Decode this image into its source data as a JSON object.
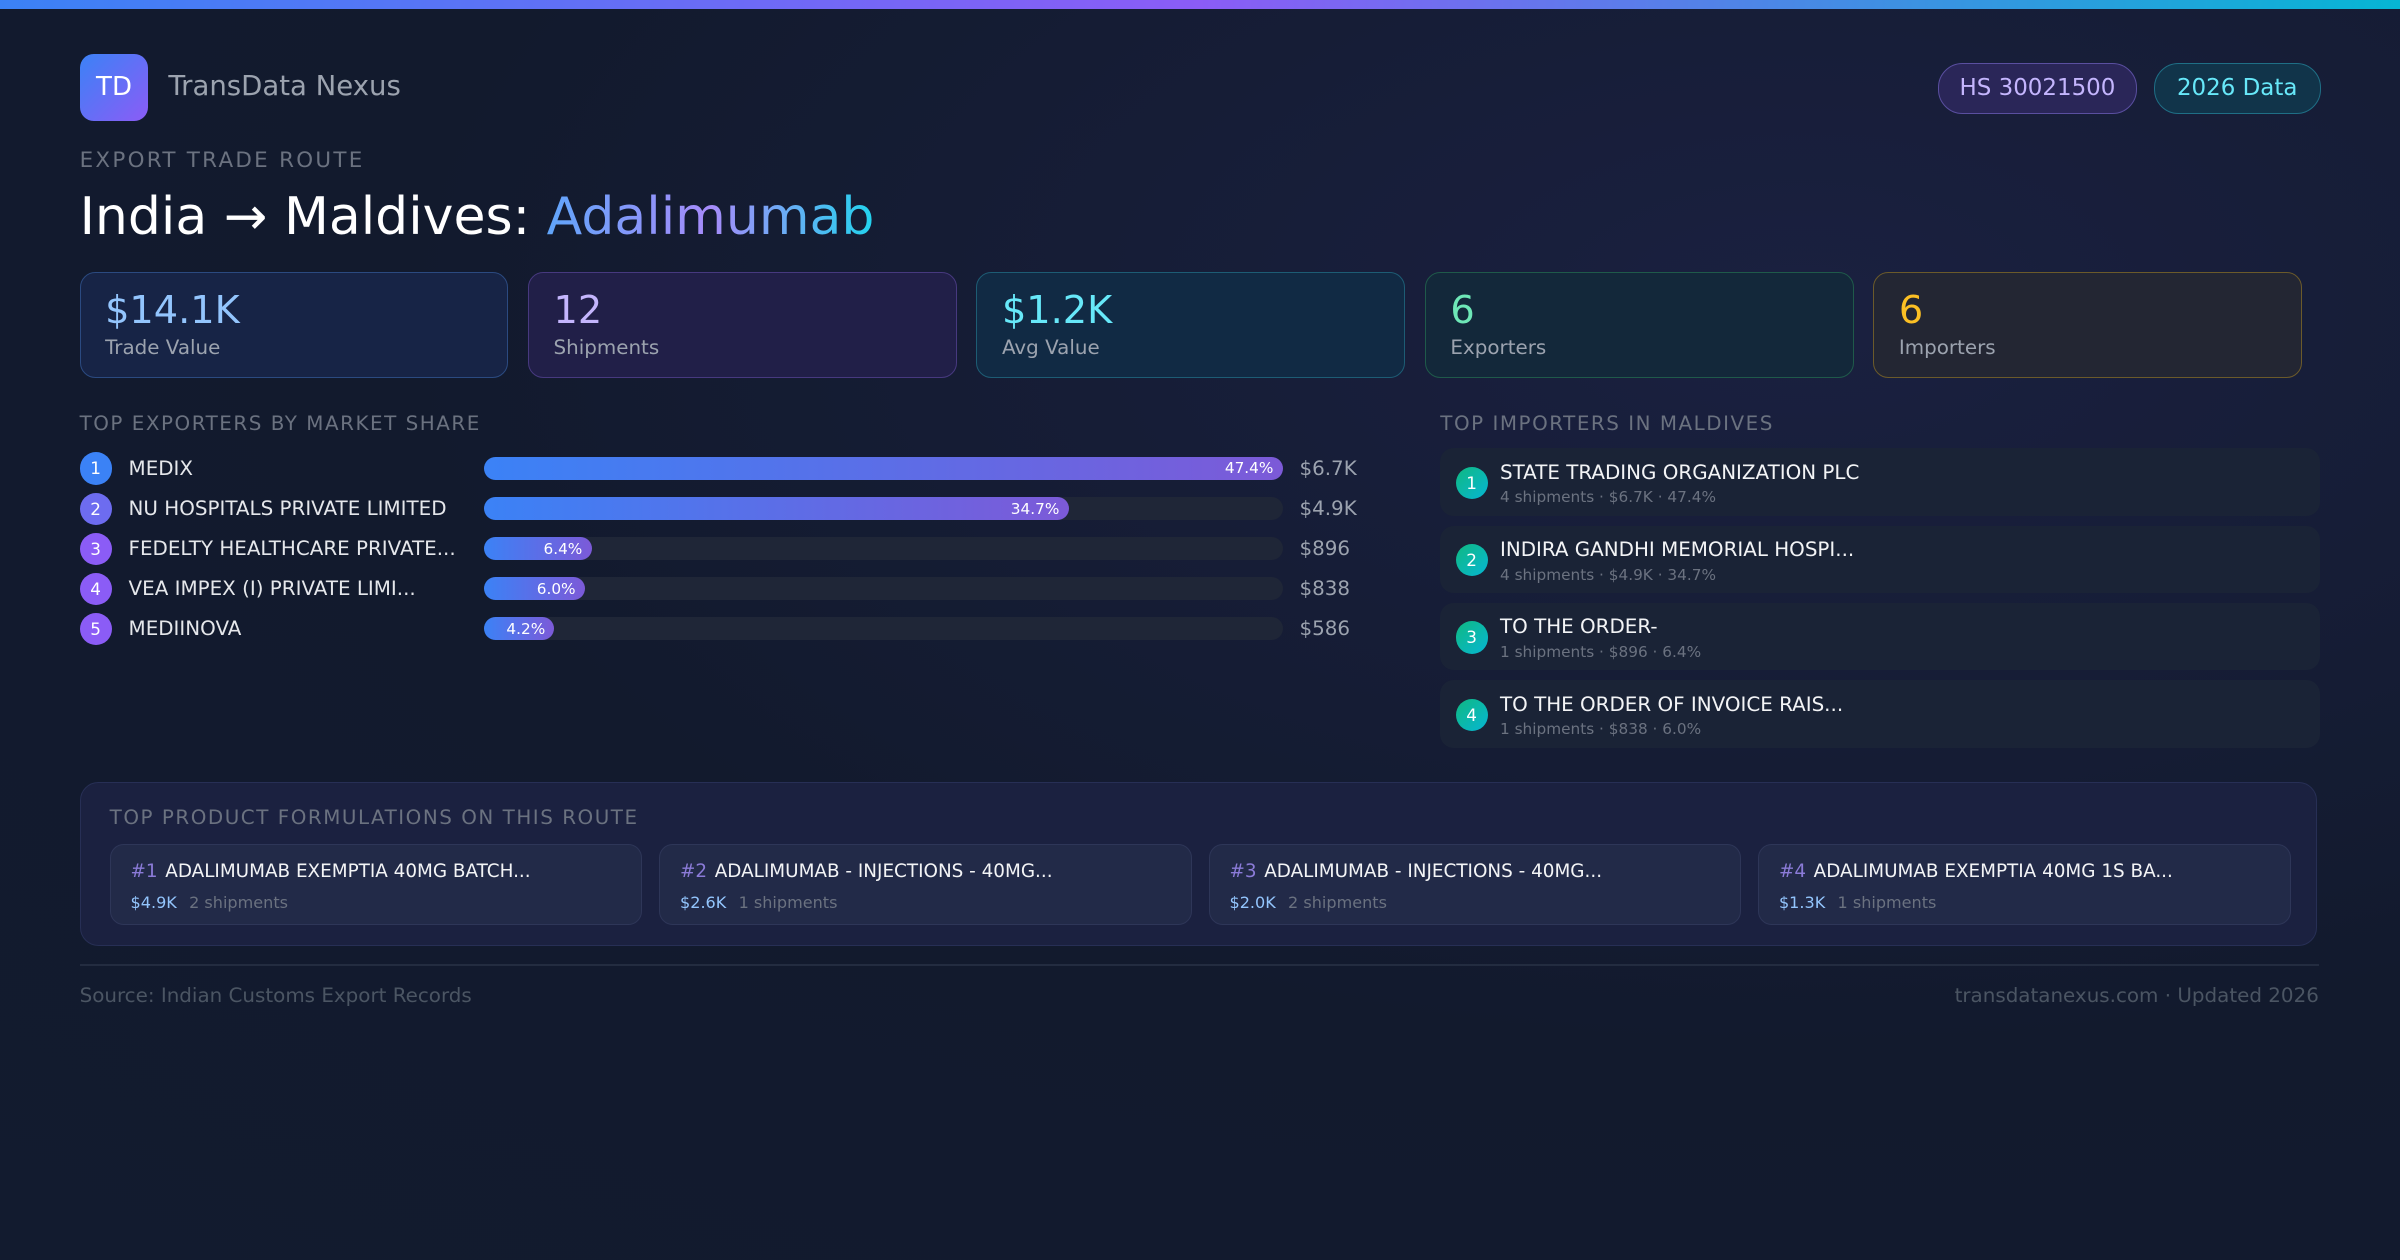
{
  "brand": {
    "logo": "TD",
    "name": "TransData Nexus"
  },
  "badges": {
    "hs": "HS 30021500",
    "year": "2026 Data"
  },
  "header": {
    "eyebrow": "EXPORT TRADE ROUTE",
    "title_route": "India → Maldives:",
    "title_product": "Adalimumab"
  },
  "stats": [
    {
      "value": "$14.1K",
      "label": "Trade Value"
    },
    {
      "value": "12",
      "label": "Shipments"
    },
    {
      "value": "$1.2K",
      "label": "Avg Value"
    },
    {
      "value": "6",
      "label": "Exporters"
    },
    {
      "value": "6",
      "label": "Importers"
    }
  ],
  "exporters": {
    "title": "TOP EXPORTERS BY MARKET SHARE",
    "items": [
      {
        "rank": "1",
        "name": "MEDIX",
        "share": 47.4,
        "share_label": "47.4%",
        "value": "$6.7K",
        "color": "#3b82f6"
      },
      {
        "rank": "2",
        "name": "NU HOSPITALS PRIVATE LIMITED",
        "share": 34.7,
        "share_label": "34.7%",
        "value": "$4.9K",
        "color": "#6d6cf0"
      },
      {
        "rank": "3",
        "name": "FEDELTY HEALTHCARE PRIVATE...",
        "share": 6.4,
        "share_label": "6.4%",
        "value": "$896",
        "color": "#8b5cf6"
      },
      {
        "rank": "4",
        "name": "VEA IMPEX (I) PRIVATE LIMI...",
        "share": 6.0,
        "share_label": "6.0%",
        "value": "$838",
        "color": "#8b5cf6"
      },
      {
        "rank": "5",
        "name": "MEDIINOVA",
        "share": 4.2,
        "share_label": "4.2%",
        "value": "$586",
        "color": "#8b5cf6"
      }
    ]
  },
  "importers": {
    "title": "TOP IMPORTERS IN MALDIVES",
    "items": [
      {
        "rank": "1",
        "name": "STATE TRADING ORGANIZATION PLC",
        "meta": "4 shipments · $6.7K · 47.4%"
      },
      {
        "rank": "2",
        "name": "INDIRA GANDHI MEMORIAL HOSPI...",
        "meta": "4 shipments · $4.9K · 34.7%"
      },
      {
        "rank": "3",
        "name": "TO THE ORDER-",
        "meta": "1 shipments · $896 · 6.4%"
      },
      {
        "rank": "4",
        "name": "TO THE ORDER OF INVOICE RAIS...",
        "meta": "1 shipments · $838 · 6.0%"
      }
    ]
  },
  "formulations": {
    "title": "TOP PRODUCT FORMULATIONS ON THIS ROUTE",
    "items": [
      {
        "rank": "#1",
        "name": "ADALIMUMAB EXEMPTIA 40MG BATCH...",
        "value": "$4.9K",
        "shipments": "2 shipments"
      },
      {
        "rank": "#2",
        "name": "ADALIMUMAB - INJECTIONS - 40MG...",
        "value": "$2.6K",
        "shipments": "1 shipments"
      },
      {
        "rank": "#3",
        "name": "ADALIMUMAB - INJECTIONS - 40MG...",
        "value": "$2.0K",
        "shipments": "2 shipments"
      },
      {
        "rank": "#4",
        "name": "ADALIMUMAB EXEMPTIA 40MG 1S BA...",
        "value": "$1.3K",
        "shipments": "1 shipments"
      }
    ]
  },
  "footer": {
    "source": "Source: Indian Customs Export Records",
    "site": "transdatanexus.com · Updated 2026"
  }
}
